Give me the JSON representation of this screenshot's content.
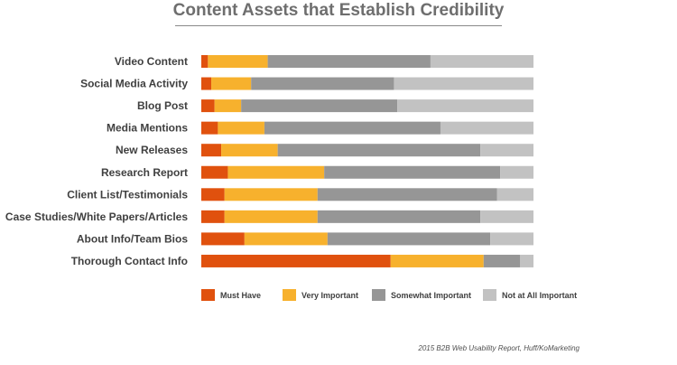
{
  "chart_data": {
    "type": "bar",
    "orientation": "horizontal",
    "stacked": true,
    "normalized": true,
    "title": "Content Assets that Establish Credibility",
    "categories": [
      "Video Content",
      "Social Media Activity",
      "Blog Post",
      "Media Mentions",
      "New Releases",
      "Research Report",
      "Client List/Testimonials",
      "Case Studies/White Papers/Articles",
      "About Info/Team Bios",
      "Thorough Contact Info"
    ],
    "series": [
      {
        "name": "Must Have",
        "color": "#e0510e",
        "values": [
          2,
          3,
          4,
          5,
          6,
          8,
          7,
          7,
          13,
          57
        ]
      },
      {
        "name": "Very Important",
        "color": "#f7b12d",
        "values": [
          18,
          12,
          8,
          14,
          17,
          29,
          28,
          28,
          25,
          28
        ]
      },
      {
        "name": "Somewhat Important",
        "color": "#969696",
        "values": [
          49,
          43,
          47,
          53,
          61,
          53,
          54,
          49,
          49,
          11
        ]
      },
      {
        "name": "Not at All Important",
        "color": "#c2c2c2",
        "values": [
          31,
          42,
          41,
          28,
          16,
          10,
          11,
          16,
          13,
          4
        ]
      }
    ],
    "xlim": [
      0,
      100
    ],
    "grid": false,
    "legend": "bottom"
  },
  "source_note": "2015 B2B Web Usability Report, Huff/KoMarketing"
}
